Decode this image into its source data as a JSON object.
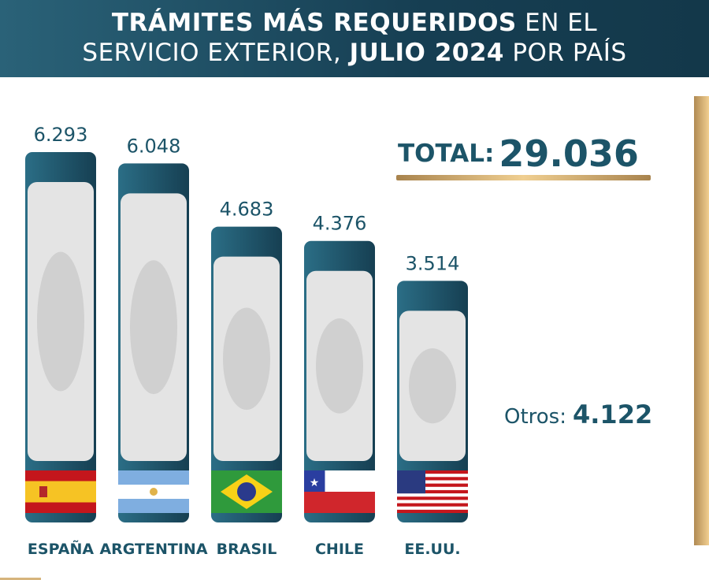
{
  "header": {
    "title_bold_1": "TRÁMITES MÁS REQUERIDOS",
    "title_thin_1": "EN EL",
    "title_thin_2": "SERVICIO EXTERIOR,",
    "title_bold_2": "JULIO 2024",
    "title_thin_3": "POR PAÍS"
  },
  "total": {
    "label": "TOTAL:",
    "value": "29.036"
  },
  "otros": {
    "label": "Otros:",
    "value": "4.122"
  },
  "colors": {
    "bar": "#1c5468",
    "text": "#1c5468",
    "gold": "#d6b47c",
    "panel": "#e6e6e6"
  },
  "chart_data": {
    "type": "bar",
    "categories": [
      "ESPAÑA",
      "ARGTENTINA",
      "BRASIL",
      "CHILE",
      "EE.UU."
    ],
    "values": [
      6293,
      6048,
      4683,
      4376,
      3514
    ],
    "value_labels": [
      "6.293",
      "6.048",
      "4.683",
      "4.376",
      "3.514"
    ],
    "flags": [
      "spain",
      "argentina",
      "brazil",
      "chile",
      "usa"
    ],
    "title": "",
    "xlabel": "",
    "ylabel": "",
    "grid": false
  }
}
